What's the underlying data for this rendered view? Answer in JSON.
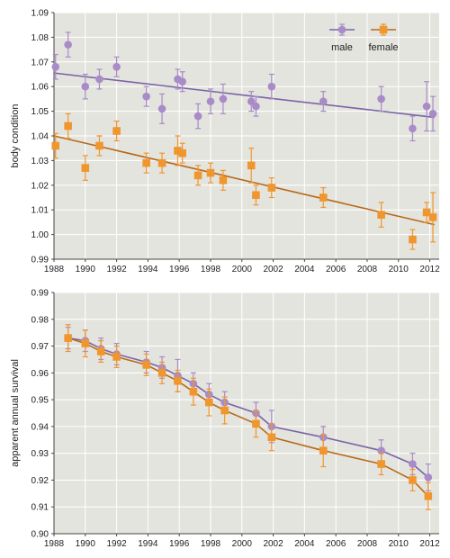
{
  "colors": {
    "male": "#a88bc7",
    "male_line": "#7b63a6",
    "female": "#f0962f",
    "female_line": "#b86a1a",
    "panel_bg": "#e4e4de",
    "grid": "#ffffff"
  },
  "chart_data": [
    {
      "type": "scatter",
      "title": "",
      "xlabel": "",
      "ylabel": "body condition",
      "xlim": [
        1988,
        2012.6
      ],
      "ylim": [
        0.99,
        1.09
      ],
      "x_ticks": [
        1988,
        1990,
        1992,
        1994,
        1996,
        1998,
        2000,
        2002,
        2004,
        2006,
        2008,
        2010,
        2012
      ],
      "y_ticks": [
        0.99,
        1.0,
        1.01,
        1.02,
        1.03,
        1.04,
        1.05,
        1.06,
        1.07,
        1.08,
        1.09
      ],
      "grid": true,
      "legend": {
        "placement": "top-right",
        "entries": [
          "male",
          "female"
        ]
      },
      "series": [
        {
          "name": "male",
          "marker": "circle",
          "points": [
            {
              "x": 1988.1,
              "y": 1.068,
              "err": 0.005
            },
            {
              "x": 1988.9,
              "y": 1.077,
              "err": 0.005
            },
            {
              "x": 1990.0,
              "y": 1.06,
              "err": 0.005
            },
            {
              "x": 1990.9,
              "y": 1.063,
              "err": 0.004
            },
            {
              "x": 1992.0,
              "y": 1.068,
              "err": 0.004
            },
            {
              "x": 1993.9,
              "y": 1.056,
              "err": 0.004
            },
            {
              "x": 1994.9,
              "y": 1.051,
              "err": 0.006
            },
            {
              "x": 1995.9,
              "y": 1.063,
              "err": 0.004
            },
            {
              "x": 1996.2,
              "y": 1.062,
              "err": 0.004
            },
            {
              "x": 1997.2,
              "y": 1.048,
              "err": 0.005
            },
            {
              "x": 1998.0,
              "y": 1.054,
              "err": 0.005
            },
            {
              "x": 1998.8,
              "y": 1.055,
              "err": 0.006
            },
            {
              "x": 2000.6,
              "y": 1.054,
              "err": 0.004
            },
            {
              "x": 2000.9,
              "y": 1.052,
              "err": 0.004
            },
            {
              "x": 2001.9,
              "y": 1.06,
              "err": 0.005
            },
            {
              "x": 2005.2,
              "y": 1.054,
              "err": 0.004
            },
            {
              "x": 2008.9,
              "y": 1.055,
              "err": 0.005
            },
            {
              "x": 2010.9,
              "y": 1.043,
              "err": 0.005
            },
            {
              "x": 2011.8,
              "y": 1.052,
              "err": 0.01
            },
            {
              "x": 2012.2,
              "y": 1.049,
              "err": 0.007
            }
          ],
          "trend": [
            [
              1988,
              1.0655
            ],
            [
              2012.3,
              1.0475
            ]
          ]
        },
        {
          "name": "female",
          "marker": "square",
          "points": [
            {
              "x": 1988.1,
              "y": 1.036,
              "err": 0.005
            },
            {
              "x": 1988.9,
              "y": 1.044,
              "err": 0.005
            },
            {
              "x": 1990.0,
              "y": 1.027,
              "err": 0.005
            },
            {
              "x": 1990.9,
              "y": 1.036,
              "err": 0.004
            },
            {
              "x": 1992.0,
              "y": 1.042,
              "err": 0.004
            },
            {
              "x": 1993.9,
              "y": 1.029,
              "err": 0.004
            },
            {
              "x": 1994.9,
              "y": 1.029,
              "err": 0.004
            },
            {
              "x": 1995.9,
              "y": 1.034,
              "err": 0.006
            },
            {
              "x": 1996.2,
              "y": 1.033,
              "err": 0.004
            },
            {
              "x": 1997.2,
              "y": 1.024,
              "err": 0.004
            },
            {
              "x": 1998.0,
              "y": 1.025,
              "err": 0.004
            },
            {
              "x": 1998.8,
              "y": 1.022,
              "err": 0.004
            },
            {
              "x": 2000.6,
              "y": 1.028,
              "err": 0.007
            },
            {
              "x": 2000.9,
              "y": 1.016,
              "err": 0.004
            },
            {
              "x": 2001.9,
              "y": 1.019,
              "err": 0.004
            },
            {
              "x": 2005.2,
              "y": 1.015,
              "err": 0.004
            },
            {
              "x": 2008.9,
              "y": 1.008,
              "err": 0.005
            },
            {
              "x": 2010.9,
              "y": 0.998,
              "err": 0.004
            },
            {
              "x": 2011.8,
              "y": 1.009,
              "err": 0.004
            },
            {
              "x": 2012.2,
              "y": 1.007,
              "err": 0.01
            }
          ],
          "trend": [
            [
              1988,
              1.04
            ],
            [
              2012.3,
              1.004
            ]
          ]
        }
      ]
    },
    {
      "type": "line",
      "title": "",
      "xlabel": "year",
      "ylabel": "apparent annual survival",
      "xlim": [
        1988,
        2012.6
      ],
      "ylim": [
        0.9,
        0.99
      ],
      "x_ticks": [
        1988,
        1990,
        1992,
        1994,
        1996,
        1998,
        2000,
        2002,
        2004,
        2006,
        2008,
        2010,
        2012
      ],
      "y_ticks": [
        0.9,
        0.91,
        0.92,
        0.93,
        0.94,
        0.95,
        0.96,
        0.97,
        0.98,
        0.99
      ],
      "grid": true,
      "series": [
        {
          "name": "male",
          "marker": "circle",
          "points": [
            {
              "x": 1988.9,
              "y": 0.973,
              "err": 0.004
            },
            {
              "x": 1990.0,
              "y": 0.972,
              "err": 0.004
            },
            {
              "x": 1991.0,
              "y": 0.969,
              "err": 0.004
            },
            {
              "x": 1992.0,
              "y": 0.967,
              "err": 0.004
            },
            {
              "x": 1993.9,
              "y": 0.964,
              "err": 0.004
            },
            {
              "x": 1994.9,
              "y": 0.962,
              "err": 0.004
            },
            {
              "x": 1995.9,
              "y": 0.959,
              "err": 0.006
            },
            {
              "x": 1996.9,
              "y": 0.956,
              "err": 0.004
            },
            {
              "x": 1997.9,
              "y": 0.952,
              "err": 0.004
            },
            {
              "x": 1998.9,
              "y": 0.949,
              "err": 0.004
            },
            {
              "x": 2000.9,
              "y": 0.945,
              "err": 0.004
            },
            {
              "x": 2001.9,
              "y": 0.94,
              "err": 0.006
            },
            {
              "x": 2005.2,
              "y": 0.936,
              "err": 0.004
            },
            {
              "x": 2008.9,
              "y": 0.931,
              "err": 0.004
            },
            {
              "x": 2010.9,
              "y": 0.926,
              "err": 0.004
            },
            {
              "x": 2011.9,
              "y": 0.921,
              "err": 0.005
            }
          ]
        },
        {
          "name": "female",
          "marker": "square",
          "points": [
            {
              "x": 1988.9,
              "y": 0.973,
              "err": 0.005
            },
            {
              "x": 1990.0,
              "y": 0.971,
              "err": 0.005
            },
            {
              "x": 1991.0,
              "y": 0.968,
              "err": 0.004
            },
            {
              "x": 1992.0,
              "y": 0.966,
              "err": 0.004
            },
            {
              "x": 1993.9,
              "y": 0.963,
              "err": 0.004
            },
            {
              "x": 1994.9,
              "y": 0.96,
              "err": 0.004
            },
            {
              "x": 1995.9,
              "y": 0.957,
              "err": 0.004
            },
            {
              "x": 1996.9,
              "y": 0.953,
              "err": 0.005
            },
            {
              "x": 1997.9,
              "y": 0.949,
              "err": 0.005
            },
            {
              "x": 1998.9,
              "y": 0.946,
              "err": 0.005
            },
            {
              "x": 2000.9,
              "y": 0.941,
              "err": 0.005
            },
            {
              "x": 2001.9,
              "y": 0.936,
              "err": 0.005
            },
            {
              "x": 2005.2,
              "y": 0.931,
              "err": 0.006
            },
            {
              "x": 2008.9,
              "y": 0.926,
              "err": 0.004
            },
            {
              "x": 2010.9,
              "y": 0.92,
              "err": 0.004
            },
            {
              "x": 2011.9,
              "y": 0.914,
              "err": 0.005
            }
          ]
        }
      ]
    }
  ]
}
